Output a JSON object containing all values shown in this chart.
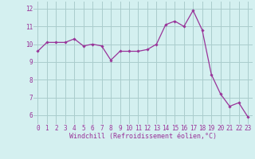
{
  "x": [
    0,
    1,
    2,
    3,
    4,
    5,
    6,
    7,
    8,
    9,
    10,
    11,
    12,
    13,
    14,
    15,
    16,
    17,
    18,
    19,
    20,
    21,
    22,
    23
  ],
  "y": [
    9.6,
    10.1,
    10.1,
    10.1,
    10.3,
    9.9,
    10.0,
    9.9,
    9.1,
    9.6,
    9.6,
    9.6,
    9.7,
    10.0,
    11.1,
    11.3,
    11.0,
    11.9,
    10.8,
    8.3,
    7.2,
    6.5,
    6.7,
    5.9
  ],
  "line_color": "#993399",
  "marker": "D",
  "marker_size": 1.8,
  "bg_color": "#d4f0f0",
  "grid_color": "#aacccc",
  "xlabel": "Windchill (Refroidissement éolien,°C)",
  "xlabel_color": "#993399",
  "xlabel_fontsize": 6,
  "tick_color": "#993399",
  "tick_fontsize": 5.5,
  "yticks": [
    6,
    7,
    8,
    9,
    10,
    11,
    12
  ],
  "ylim": [
    5.5,
    12.4
  ],
  "xlim": [
    -0.5,
    23.5
  ],
  "xticks": [
    0,
    1,
    2,
    3,
    4,
    5,
    6,
    7,
    8,
    9,
    10,
    11,
    12,
    13,
    14,
    15,
    16,
    17,
    18,
    19,
    20,
    21,
    22,
    23
  ]
}
